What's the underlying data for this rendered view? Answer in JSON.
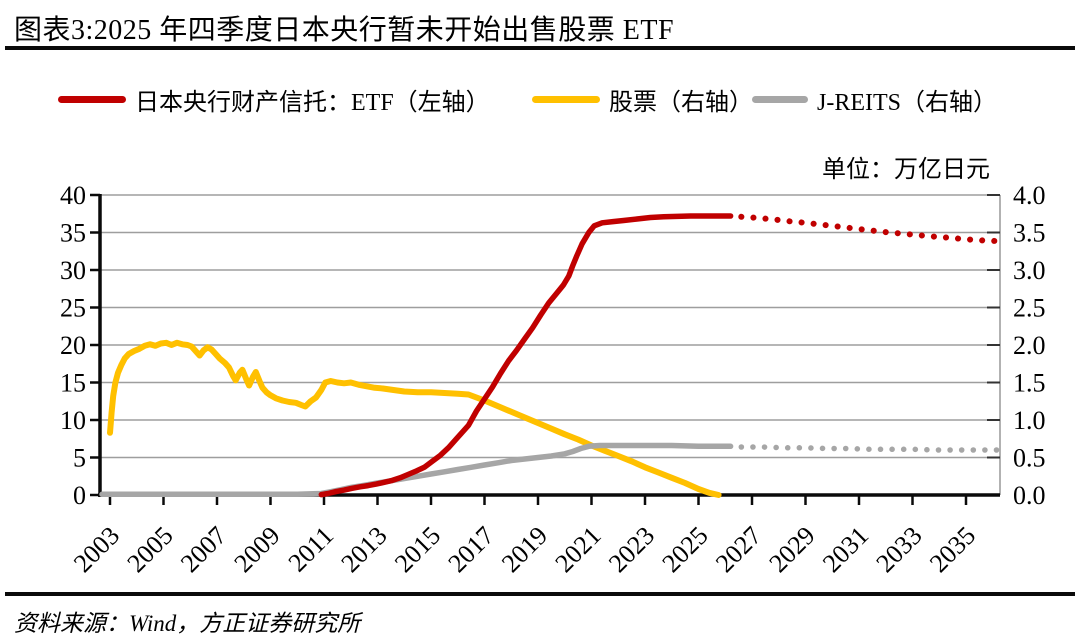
{
  "header": {
    "title": "图表3:2025 年四季度日本央行暂未开始出售股票 ETF"
  },
  "footer": {
    "source": "资料来源：Wind，方正证券研究所"
  },
  "chart_data": {
    "type": "line",
    "title": "图表3:2025 年四季度日本央行暂未开始出售股票 ETF",
    "unit": "单位：万亿日元",
    "grid": true,
    "legend_position": "top",
    "x_axis": {
      "range": [
        2002.6,
        2036.4
      ],
      "ticks": [
        2003,
        2005,
        2007,
        2009,
        2011,
        2013,
        2015,
        2017,
        2019,
        2021,
        2023,
        2025,
        2027,
        2029,
        2031,
        2033,
        2035
      ]
    },
    "y_axis_left": {
      "range": [
        0,
        40
      ],
      "ticks": [
        0,
        5,
        10,
        15,
        20,
        25,
        30,
        35,
        40
      ]
    },
    "y_axis_right": {
      "range": [
        0,
        4
      ],
      "ticks": [
        "0.0",
        "0.5",
        "1.0",
        "1.5",
        "2.0",
        "2.5",
        "3.0",
        "3.5",
        "4.0"
      ]
    },
    "series": [
      {
        "id": "stock",
        "name": "股票（右轴）",
        "axis": "right",
        "color": "#FFC000",
        "solid": {
          "x": [
            2003.0,
            2003.06,
            2003.12,
            2003.2,
            2003.3,
            2003.42,
            2003.55,
            2003.7,
            2003.9,
            2004.1,
            2004.3,
            2004.5,
            2004.7,
            2004.9,
            2005.1,
            2005.3,
            2005.5,
            2005.7,
            2005.9,
            2006.05,
            2006.2,
            2006.35,
            2006.5,
            2006.65,
            2006.8,
            2006.95,
            2007.1,
            2007.3,
            2007.45,
            2007.6,
            2007.7,
            2007.85,
            2007.95,
            2008.1,
            2008.2,
            2008.35,
            2008.45,
            2008.6,
            2008.7,
            2008.85,
            2009.0,
            2009.2,
            2009.45,
            2009.7,
            2009.95,
            2010.15,
            2010.3,
            2010.5,
            2010.7,
            2010.9,
            2011.05,
            2011.25,
            2011.5,
            2011.75,
            2012.0,
            2012.3,
            2012.6,
            2012.9,
            2013.2,
            2013.6,
            2014.0,
            2014.5,
            2015.0,
            2015.5,
            2016.0,
            2016.4,
            2017.0,
            2017.6,
            2018.2,
            2018.8,
            2019.4,
            2020.0,
            2020.5,
            2021.0,
            2021.5,
            2022.0,
            2022.5,
            2023.0,
            2023.5,
            2024.0,
            2024.5,
            2025.0,
            2025.4,
            2025.75
          ],
          "y": [
            0.83,
            1.1,
            1.32,
            1.5,
            1.63,
            1.73,
            1.82,
            1.88,
            1.92,
            1.95,
            1.99,
            2.01,
            1.99,
            2.02,
            2.03,
            2.0,
            2.03,
            2.01,
            2.0,
            1.98,
            1.92,
            1.86,
            1.93,
            1.97,
            1.94,
            1.88,
            1.82,
            1.76,
            1.7,
            1.59,
            1.53,
            1.63,
            1.67,
            1.54,
            1.46,
            1.58,
            1.64,
            1.51,
            1.43,
            1.37,
            1.33,
            1.29,
            1.26,
            1.24,
            1.23,
            1.2,
            1.18,
            1.25,
            1.3,
            1.4,
            1.5,
            1.52,
            1.5,
            1.49,
            1.5,
            1.47,
            1.45,
            1.43,
            1.42,
            1.4,
            1.38,
            1.37,
            1.37,
            1.36,
            1.35,
            1.34,
            1.26,
            1.17,
            1.08,
            0.99,
            0.9,
            0.81,
            0.74,
            0.66,
            0.59,
            0.52,
            0.45,
            0.37,
            0.3,
            0.23,
            0.16,
            0.08,
            0.03,
            0.0
          ]
        }
      },
      {
        "id": "jreits",
        "name": "J-REITS（右轴）",
        "axis": "right",
        "color": "#A6A6A6",
        "solid": {
          "x": [
            2002.7,
            2004.0,
            2006.0,
            2008.0,
            2010.0,
            2010.9,
            2011.2,
            2011.6,
            2012.0,
            2012.5,
            2013.0,
            2013.5,
            2014.0,
            2014.5,
            2015.0,
            2015.5,
            2016.0,
            2016.5,
            2017.0,
            2017.5,
            2018.0,
            2018.5,
            2019.0,
            2019.5,
            2020.0,
            2020.3,
            2020.6,
            2020.9,
            2021.3,
            2022.0,
            2023.0,
            2024.0,
            2025.0,
            2026.2
          ],
          "y": [
            0.01,
            0.01,
            0.01,
            0.01,
            0.01,
            0.02,
            0.04,
            0.07,
            0.1,
            0.13,
            0.16,
            0.19,
            0.22,
            0.25,
            0.28,
            0.31,
            0.34,
            0.37,
            0.4,
            0.43,
            0.46,
            0.48,
            0.5,
            0.52,
            0.55,
            0.58,
            0.62,
            0.65,
            0.66,
            0.66,
            0.66,
            0.66,
            0.65,
            0.65
          ]
        },
        "dotted": {
          "x": [
            2026.6,
            2027.4,
            2028.2,
            2029.0,
            2029.8,
            2030.6,
            2031.4,
            2032.2,
            2033.0,
            2033.8,
            2034.6,
            2035.4,
            2036.2
          ],
          "y": [
            0.64,
            0.64,
            0.63,
            0.63,
            0.62,
            0.62,
            0.61,
            0.61,
            0.61,
            0.6,
            0.6,
            0.6,
            0.6
          ]
        }
      },
      {
        "id": "etf",
        "name": "日本央行财产信托：ETF（左轴）",
        "axis": "left",
        "color": "#C00000",
        "solid": {
          "x": [
            2010.9,
            2011.15,
            2011.45,
            2011.75,
            2012.05,
            2012.35,
            2012.65,
            2012.95,
            2013.25,
            2013.55,
            2013.85,
            2014.15,
            2014.45,
            2014.75,
            2015.05,
            2015.35,
            2015.65,
            2015.95,
            2016.4,
            2016.7,
            2017.0,
            2017.3,
            2017.6,
            2017.9,
            2018.2,
            2018.5,
            2018.8,
            2019.1,
            2019.4,
            2019.7,
            2019.95,
            2020.15,
            2020.3,
            2020.45,
            2020.65,
            2020.9,
            2021.1,
            2021.4,
            2021.8,
            2022.2,
            2022.7,
            2023.2,
            2023.7,
            2024.2,
            2024.7,
            2025.2,
            2025.7,
            2026.2
          ],
          "y": [
            0.05,
            0.2,
            0.45,
            0.65,
            0.9,
            1.1,
            1.25,
            1.45,
            1.7,
            1.95,
            2.3,
            2.75,
            3.2,
            3.7,
            4.5,
            5.3,
            6.3,
            7.5,
            9.3,
            11.2,
            12.8,
            14.4,
            16.2,
            17.9,
            19.3,
            20.8,
            22.3,
            24.0,
            25.6,
            26.9,
            28.0,
            29.2,
            30.6,
            31.9,
            33.5,
            35.0,
            35.9,
            36.3,
            36.45,
            36.6,
            36.8,
            37.0,
            37.1,
            37.15,
            37.2,
            37.2,
            37.2,
            37.2
          ]
        },
        "dotted": {
          "x": [
            2026.6,
            2027.2,
            2027.8,
            2028.4,
            2029.0,
            2029.6,
            2030.2,
            2030.8,
            2031.4,
            2032.0,
            2032.6,
            2033.2,
            2033.8,
            2034.4,
            2035.0,
            2035.6,
            2036.2
          ],
          "y": [
            37.1,
            36.95,
            36.75,
            36.5,
            36.3,
            36.05,
            35.8,
            35.55,
            35.3,
            35.05,
            34.85,
            34.65,
            34.45,
            34.3,
            34.1,
            33.95,
            33.85
          ]
        }
      }
    ]
  },
  "legend_order": [
    2,
    0,
    1
  ]
}
